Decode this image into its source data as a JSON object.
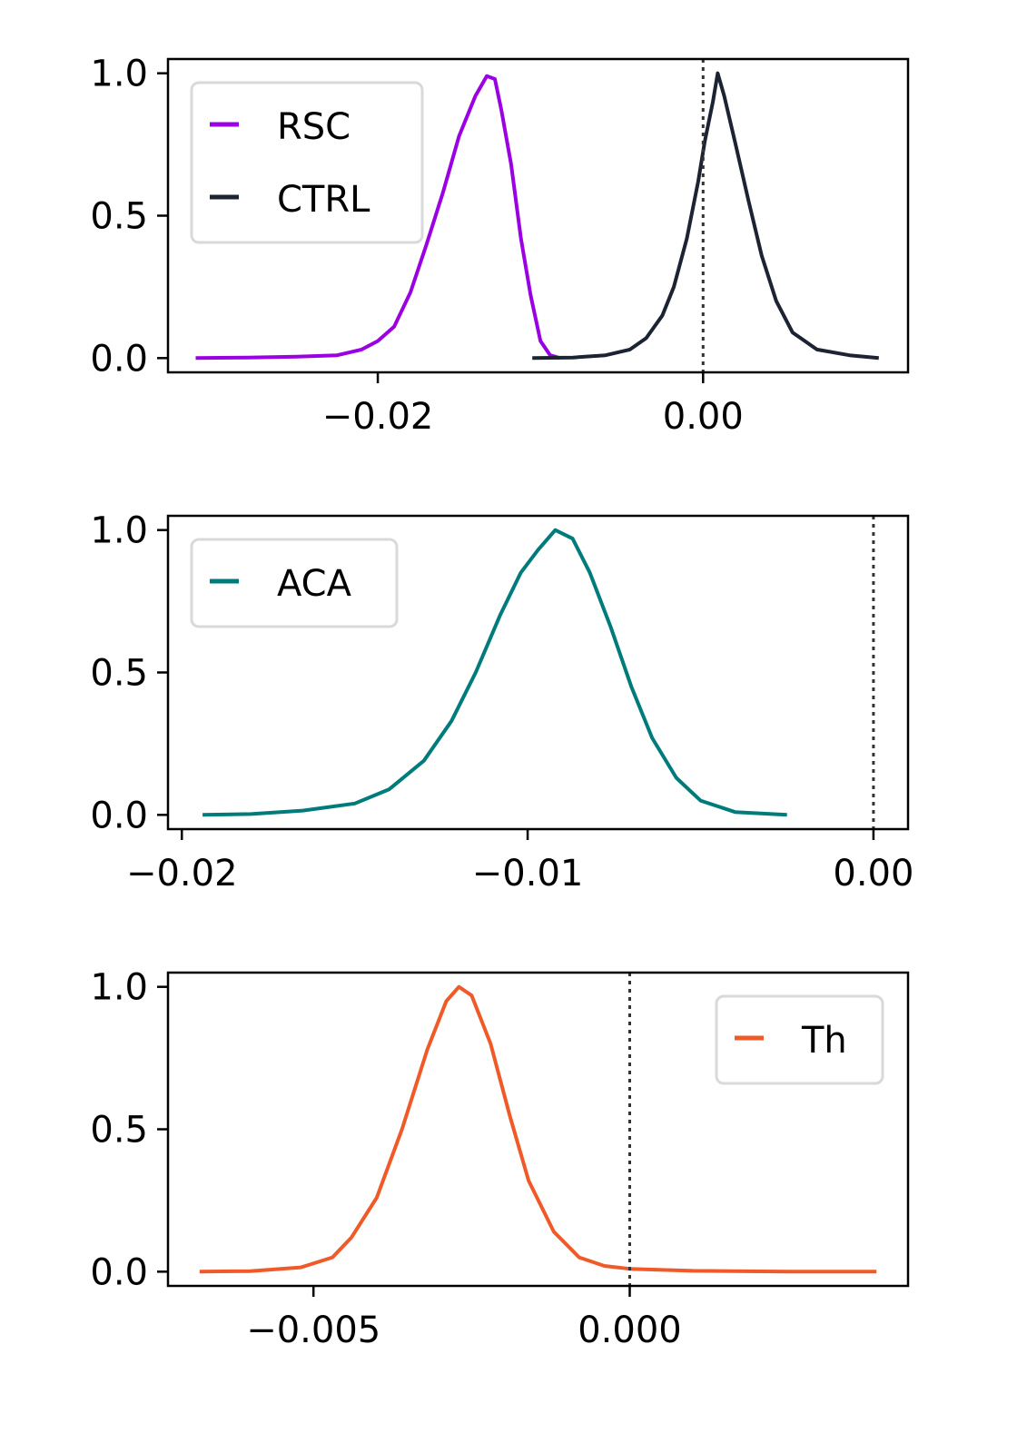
{
  "chart_data": [
    {
      "type": "line",
      "xlim": [
        -0.0329,
        0.0126
      ],
      "ylim": [
        -0.05,
        1.05
      ],
      "xticks": [
        -0.02,
        0.0
      ],
      "xtick_labels": [
        "−0.02",
        "0.00"
      ],
      "yticks": [
        0.0,
        0.5,
        1.0
      ],
      "ytick_labels": [
        "0.0",
        "0.5",
        "1.0"
      ],
      "vline": 0.0,
      "grid": false,
      "legend_position": "top-left",
      "series": [
        {
          "name": "RSC",
          "color": "#9b00e3",
          "points": [
            [
              -0.0312,
              0.0
            ],
            [
              -0.028,
              0.002
            ],
            [
              -0.025,
              0.005
            ],
            [
              -0.0225,
              0.01
            ],
            [
              -0.021,
              0.03
            ],
            [
              -0.02,
              0.06
            ],
            [
              -0.019,
              0.11
            ],
            [
              -0.018,
              0.23
            ],
            [
              -0.017,
              0.4
            ],
            [
              -0.016,
              0.58
            ],
            [
              -0.015,
              0.78
            ],
            [
              -0.014,
              0.92
            ],
            [
              -0.0133,
              0.99
            ],
            [
              -0.0128,
              0.98
            ],
            [
              -0.0124,
              0.87
            ],
            [
              -0.0118,
              0.68
            ],
            [
              -0.0112,
              0.42
            ],
            [
              -0.0106,
              0.22
            ],
            [
              -0.01,
              0.06
            ],
            [
              -0.0094,
              0.01
            ],
            [
              -0.0088,
              0.0
            ]
          ]
        },
        {
          "name": "CTRL",
          "color": "#1c2333",
          "points": [
            [
              -0.0105,
              0.0
            ],
            [
              -0.008,
              0.002
            ],
            [
              -0.006,
              0.01
            ],
            [
              -0.0045,
              0.03
            ],
            [
              -0.0035,
              0.07
            ],
            [
              -0.0025,
              0.15
            ],
            [
              -0.0018,
              0.25
            ],
            [
              -0.001,
              0.42
            ],
            [
              -0.0003,
              0.62
            ],
            [
              0.0001,
              0.76
            ],
            [
              0.0006,
              0.9
            ],
            [
              0.0009,
              1.0
            ],
            [
              0.0013,
              0.92
            ],
            [
              0.002,
              0.75
            ],
            [
              0.0028,
              0.55
            ],
            [
              0.0036,
              0.36
            ],
            [
              0.0045,
              0.2
            ],
            [
              0.0055,
              0.09
            ],
            [
              0.007,
              0.03
            ],
            [
              0.009,
              0.01
            ],
            [
              0.0108,
              0.0
            ]
          ]
        }
      ]
    },
    {
      "type": "line",
      "xlim": [
        -0.0204,
        0.001
      ],
      "ylim": [
        -0.05,
        1.05
      ],
      "xticks": [
        -0.02,
        -0.01,
        0.0
      ],
      "xtick_labels": [
        "−0.02",
        "−0.01",
        "0.00"
      ],
      "yticks": [
        0.0,
        0.5,
        1.0
      ],
      "ytick_labels": [
        "0.0",
        "0.5",
        "1.0"
      ],
      "vline": 0.0,
      "grid": false,
      "legend_position": "top-left",
      "series": [
        {
          "name": "ACA",
          "color": "#007b7b",
          "points": [
            [
              -0.0194,
              0.0
            ],
            [
              -0.018,
              0.003
            ],
            [
              -0.0165,
              0.015
            ],
            [
              -0.015,
              0.04
            ],
            [
              -0.014,
              0.09
            ],
            [
              -0.013,
              0.19
            ],
            [
              -0.0122,
              0.33
            ],
            [
              -0.0115,
              0.5
            ],
            [
              -0.0108,
              0.7
            ],
            [
              -0.0102,
              0.85
            ],
            [
              -0.0097,
              0.93
            ],
            [
              -0.0092,
              1.0
            ],
            [
              -0.0087,
              0.97
            ],
            [
              -0.0082,
              0.85
            ],
            [
              -0.0076,
              0.66
            ],
            [
              -0.007,
              0.45
            ],
            [
              -0.0064,
              0.27
            ],
            [
              -0.0057,
              0.13
            ],
            [
              -0.005,
              0.05
            ],
            [
              -0.004,
              0.01
            ],
            [
              -0.0025,
              0.0
            ]
          ]
        }
      ]
    },
    {
      "type": "line",
      "xlim": [
        -0.0073,
        0.0044
      ],
      "ylim": [
        -0.05,
        1.05
      ],
      "xticks": [
        -0.005,
        0.0
      ],
      "xtick_labels": [
        "−0.005",
        "0.000"
      ],
      "yticks": [
        0.0,
        0.5,
        1.0
      ],
      "ytick_labels": [
        "0.0",
        "0.5",
        "1.0"
      ],
      "vline": 0.0,
      "grid": false,
      "legend_position": "top-right",
      "series": [
        {
          "name": "Th",
          "color": "#f05a28",
          "points": [
            [
              -0.0068,
              0.0
            ],
            [
              -0.006,
              0.002
            ],
            [
              -0.0052,
              0.015
            ],
            [
              -0.0047,
              0.05
            ],
            [
              -0.0044,
              0.12
            ],
            [
              -0.004,
              0.26
            ],
            [
              -0.0036,
              0.5
            ],
            [
              -0.0032,
              0.78
            ],
            [
              -0.0029,
              0.95
            ],
            [
              -0.0027,
              1.0
            ],
            [
              -0.0025,
              0.97
            ],
            [
              -0.0022,
              0.8
            ],
            [
              -0.0019,
              0.55
            ],
            [
              -0.0016,
              0.32
            ],
            [
              -0.0012,
              0.14
            ],
            [
              -0.0008,
              0.05
            ],
            [
              -0.0004,
              0.02
            ],
            [
              0.0,
              0.01
            ],
            [
              0.001,
              0.003
            ],
            [
              0.0025,
              0.0
            ],
            [
              0.0039,
              0.0
            ]
          ]
        }
      ]
    }
  ]
}
